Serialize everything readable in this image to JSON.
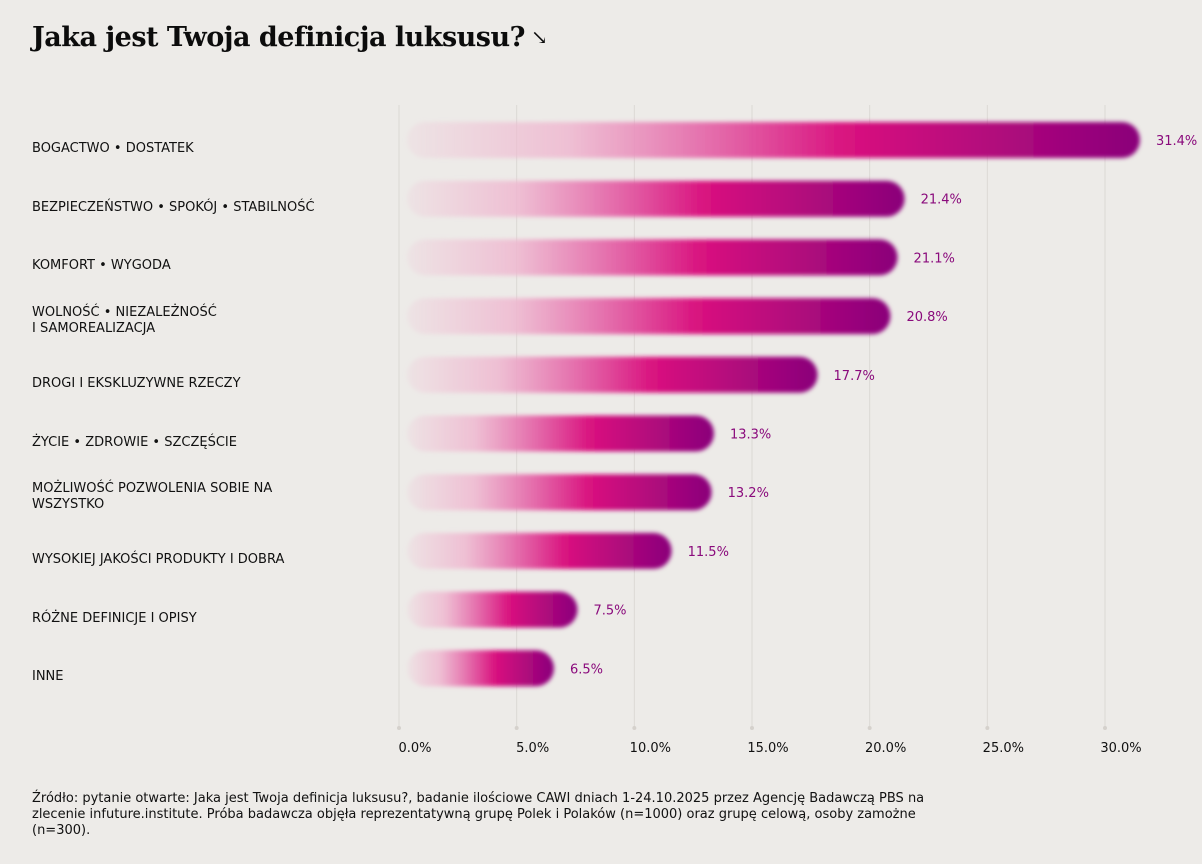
{
  "title": "Jaka jest Twoja definicja luksusu?",
  "title_arrow": "↘",
  "source_note": "Źródło: pytanie otwarte: Jaka jest Twoja definicja luksusu?, badanie ilościowe CAWI dniach 1-24.10.2025 przez Agencję Badawczą PBS na zlecenie infuture.institute. Próba badawcza objęła reprezentatywną grupę Polek i Polaków (n=1000) oraz grupę celową, osoby zamożne (n=300).",
  "colors": {
    "background": "#edebe8",
    "bar_start": "#efb8d0",
    "bar_mid": "#d9127f",
    "bar_end": "#8a007a",
    "value_label": "#8a0a7c",
    "grid": "#dcd9d5"
  },
  "chart_data": {
    "type": "bar",
    "orientation": "horizontal",
    "categories": [
      "BOGACTWO • DOSTATEK",
      "BEZPIECZEŃSTWO • SPOKÓJ • STABILNOŚĆ",
      "KOMFORT • WYGODA",
      "WOLNOŚĆ • NIEZALEŻNOŚĆ\nI SAMOREALIZACJA",
      "DROGI I EKSKLUZYWNE RZECZY",
      "ŻYCIE • ZDROWIE • SZCZĘŚCIE",
      "MOŻLIWOŚĆ POZWOLENIA SOBIE NA\nWSZYSTKO",
      "WYSOKIEJ JAKOŚCI PRODUKTY I DOBRA",
      "RÓŻNE DEFINICJE I OPISY",
      "INNE"
    ],
    "values": [
      31.4,
      21.4,
      21.1,
      20.8,
      17.7,
      13.3,
      13.2,
      11.5,
      7.5,
      6.5
    ],
    "value_labels": [
      "31.4%",
      "21.4%",
      "21.1%",
      "20.8%",
      "17.7%",
      "13.3%",
      "13.2%",
      "11.5%",
      "7.5%",
      "6.5%"
    ],
    "xlim": [
      0,
      30
    ],
    "xticks": [
      0,
      5,
      10,
      15,
      20,
      25,
      30
    ],
    "xtick_labels": [
      "0.0%",
      "5.0%",
      "10.0%",
      "15.0%",
      "20.0%",
      "25.0%",
      "30.0%"
    ],
    "grid": true
  }
}
